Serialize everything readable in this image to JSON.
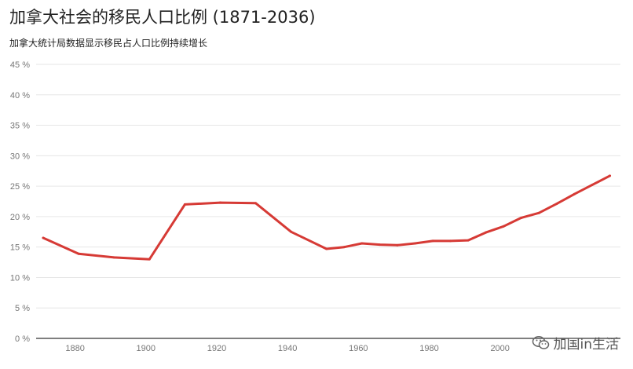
{
  "header": {
    "title": "加拿大社会的移民人口比例 (1871-2036)",
    "subtitle": "加拿大统计局数据显示移民占人口比例持续增长"
  },
  "watermark": {
    "text": "加国in生活",
    "icon": "wechat-icon"
  },
  "colors": {
    "line": "#d63a35",
    "grid": "#e6e6e6",
    "axis": "#333333",
    "text": "#222222",
    "tick": "#777777"
  },
  "chart_data": {
    "type": "line",
    "title": "加拿大社会的移民人口比例 (1871-2036)",
    "subtitle": "加拿大统计局数据显示移民占人口比例持续增长",
    "xlabel": "",
    "ylabel": "",
    "xlim": [
      1869,
      2034
    ],
    "ylim": [
      0,
      45
    ],
    "x_ticks": [
      1880,
      1900,
      1920,
      1940,
      1960,
      1980,
      2000
    ],
    "x_tick_labels": [
      "1880",
      "1900",
      "1920",
      "1940",
      "1960",
      "1980",
      "2000"
    ],
    "y_ticks": [
      0,
      5,
      10,
      15,
      20,
      25,
      30,
      35,
      40,
      45
    ],
    "y_tick_labels": [
      "0 %",
      "5 %",
      "10 %",
      "15 %",
      "20 %",
      "25 %",
      "30 %",
      "35 %",
      "40 %",
      "45 %"
    ],
    "grid": true,
    "legend": "none",
    "series": [
      {
        "x": [
          1871,
          1881,
          1891,
          1901,
          1911,
          1921,
          1931,
          1941,
          1951,
          1956,
          1961,
          1966,
          1971,
          1976,
          1981,
          1986,
          1991,
          1996,
          2001,
          2006,
          2011,
          2016,
          2021,
          2026,
          2031
        ],
        "values": [
          16.5,
          13.9,
          13.3,
          13.0,
          22.0,
          22.3,
          22.2,
          17.5,
          14.7,
          15.0,
          15.6,
          15.4,
          15.3,
          15.6,
          16.0,
          16.0,
          16.1,
          17.4,
          18.4,
          19.8,
          20.6,
          22.1,
          23.7,
          25.2,
          26.7
        ]
      }
    ]
  }
}
